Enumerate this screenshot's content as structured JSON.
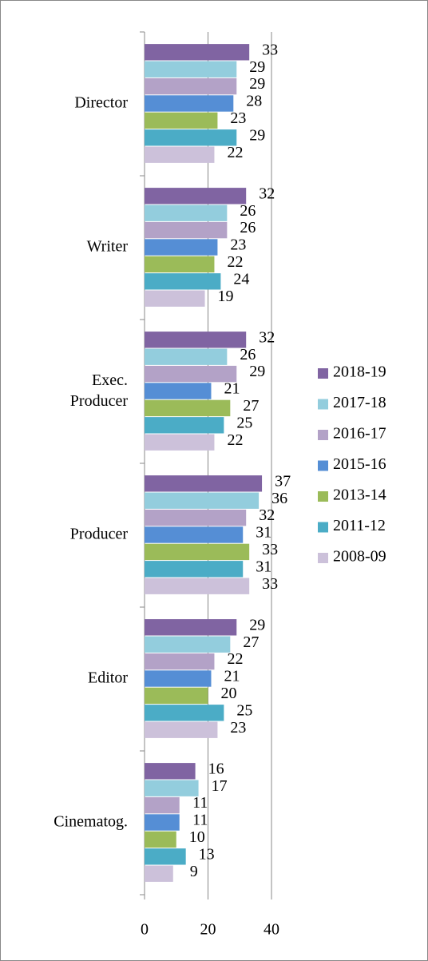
{
  "chart_data": {
    "type": "hbar",
    "categories": [
      "Director",
      "Writer",
      "Exec. Producer",
      "Producer",
      "Editor",
      "Cinematog."
    ],
    "series": [
      {
        "name": "2018-19",
        "color": "#8064a2",
        "values": [
          33,
          32,
          32,
          37,
          29,
          16
        ]
      },
      {
        "name": "2017-18",
        "color": "#93cddd",
        "values": [
          29,
          26,
          26,
          36,
          27,
          17
        ]
      },
      {
        "name": "2016-17",
        "color": "#b3a2c7",
        "values": [
          29,
          26,
          29,
          32,
          22,
          11
        ]
      },
      {
        "name": "2015-16",
        "color": "#558ed5",
        "values": [
          28,
          23,
          21,
          31,
          21,
          11
        ]
      },
      {
        "name": "2013-14",
        "color": "#9bbb59",
        "values": [
          23,
          22,
          27,
          33,
          20,
          10
        ]
      },
      {
        "name": "2011-12",
        "color": "#4bacc6",
        "values": [
          29,
          24,
          25,
          31,
          25,
          13
        ]
      },
      {
        "name": "2008-09",
        "color": "#ccc1da",
        "values": [
          22,
          19,
          22,
          33,
          23,
          9
        ]
      }
    ],
    "xlim": [
      0,
      40
    ],
    "xticks": [
      0,
      20,
      40
    ],
    "grid": true,
    "legend": "right"
  }
}
